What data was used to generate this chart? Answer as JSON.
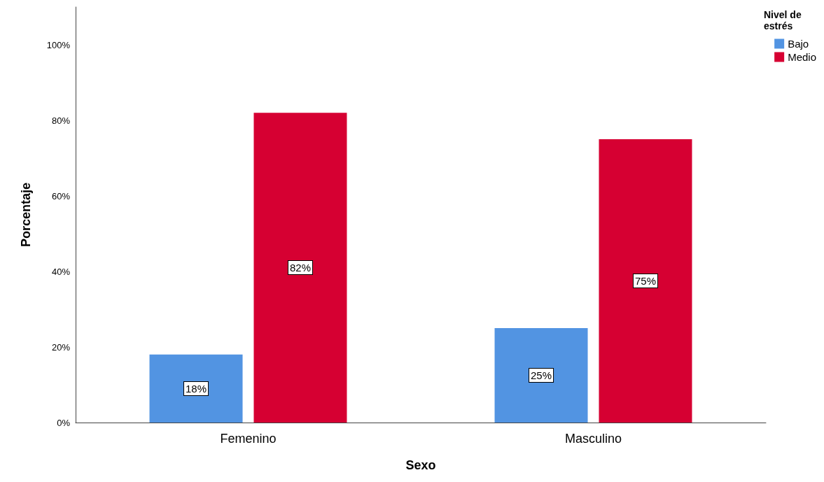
{
  "chart_data": {
    "type": "bar",
    "xlabel": "Sexo",
    "ylabel": "Porcentaje",
    "legend_title": "Nivel de estrés",
    "categories": [
      "Femenino",
      "Masculino"
    ],
    "series": [
      {
        "name": "Bajo",
        "color": "#5294e2",
        "values": [
          18,
          25
        ],
        "value_labels": [
          "18%",
          "25%"
        ]
      },
      {
        "name": "Medio",
        "color": "#d60032",
        "values": [
          82,
          75
        ],
        "value_labels": [
          "82%",
          "75%"
        ]
      }
    ],
    "ylim": [
      0,
      110
    ],
    "yticks": [
      {
        "value": 0,
        "label": "0%"
      },
      {
        "value": 20,
        "label": "20%"
      },
      {
        "value": 40,
        "label": "40%"
      },
      {
        "value": 60,
        "label": "60%"
      },
      {
        "value": 80,
        "label": "80%"
      },
      {
        "value": 100,
        "label": "100%"
      }
    ],
    "grid": false,
    "legend": "top right"
  }
}
